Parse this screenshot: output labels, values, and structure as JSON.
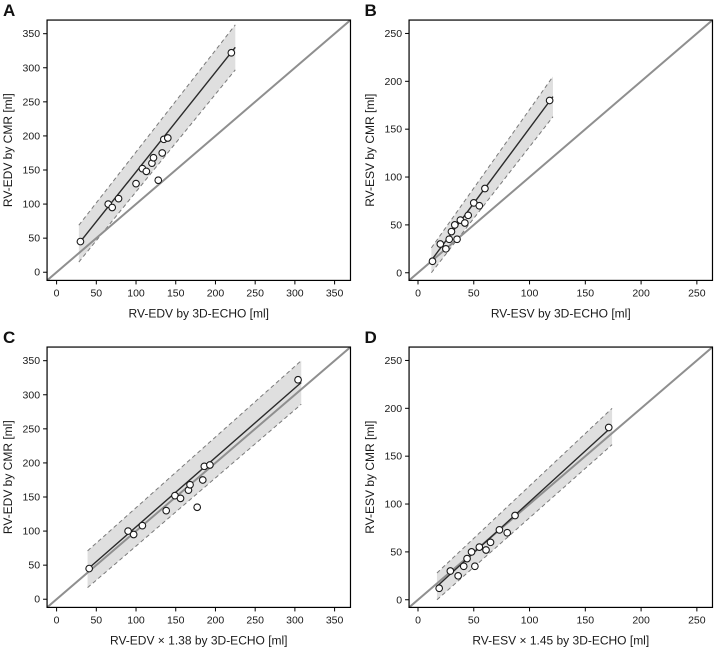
{
  "figure": {
    "background": "#ffffff",
    "point_style": {
      "fill": "#ffffff",
      "stroke": "#1a1a1a"
    },
    "colors": {
      "identity_line": "#8f8f8f",
      "regression_line": "#2b2b2b",
      "band_fill": "#dcdcdc",
      "band_edge": "#7a7a7a",
      "frame": "#000000",
      "text": "#1a1a1a"
    }
  },
  "chart_data": [
    {
      "panel": "A",
      "type": "scatter",
      "xlabel": "RV-EDV by 3D-ECHO [ml]",
      "ylabel": "RV-EDV by CMR [ml]",
      "xlim": [
        -12,
        370
      ],
      "ylim": [
        -12,
        370
      ],
      "xticks": [
        0,
        50,
        100,
        150,
        200,
        250,
        300,
        350
      ],
      "yticks": [
        0,
        50,
        100,
        150,
        200,
        250,
        300,
        350
      ],
      "grid": false,
      "legend": false,
      "identity_line": true,
      "points": [
        [
          30,
          45
        ],
        [
          65,
          100
        ],
        [
          70,
          95
        ],
        [
          78,
          108
        ],
        [
          100,
          130
        ],
        [
          108,
          152
        ],
        [
          113,
          148
        ],
        [
          120,
          160
        ],
        [
          122,
          168
        ],
        [
          128,
          135
        ],
        [
          133,
          175
        ],
        [
          135,
          195
        ],
        [
          140,
          197
        ],
        [
          220,
          322
        ]
      ],
      "regression": {
        "x0": 28,
        "y0": 42,
        "x1": 225,
        "y1": 330,
        "band_halfwidth": [
          27,
          33
        ]
      }
    },
    {
      "panel": "B",
      "type": "scatter",
      "xlabel": "RV-ESV by 3D-ECHO [ml]",
      "ylabel": "RV-ESV by CMR [ml]",
      "xlim": [
        -8,
        264
      ],
      "ylim": [
        -8,
        264
      ],
      "xticks": [
        0,
        50,
        100,
        150,
        200,
        250
      ],
      "yticks": [
        0,
        50,
        100,
        150,
        200,
        250
      ],
      "grid": false,
      "legend": false,
      "identity_line": true,
      "points": [
        [
          13,
          12
        ],
        [
          20,
          30
        ],
        [
          25,
          25
        ],
        [
          28,
          35
        ],
        [
          30,
          43
        ],
        [
          33,
          50
        ],
        [
          35,
          35
        ],
        [
          38,
          55
        ],
        [
          42,
          52
        ],
        [
          45,
          60
        ],
        [
          50,
          73
        ],
        [
          55,
          70
        ],
        [
          60,
          88
        ],
        [
          118,
          180
        ]
      ],
      "regression": {
        "x0": 12,
        "y0": 13,
        "x1": 121,
        "y1": 184,
        "band_halfwidth": [
          13,
          21
        ]
      }
    },
    {
      "panel": "C",
      "type": "scatter",
      "xlabel": "RV-EDV × 1.38 by 3D-ECHO [ml]",
      "ylabel": "RV-EDV by CMR [ml]",
      "xlim": [
        -12,
        370
      ],
      "ylim": [
        -12,
        370
      ],
      "xticks": [
        0,
        50,
        100,
        150,
        200,
        250,
        300,
        350
      ],
      "yticks": [
        0,
        50,
        100,
        150,
        200,
        250,
        300,
        350
      ],
      "grid": false,
      "legend": false,
      "identity_line": true,
      "points": [
        [
          41,
          45
        ],
        [
          90,
          100
        ],
        [
          97,
          95
        ],
        [
          108,
          108
        ],
        [
          138,
          130
        ],
        [
          149,
          152
        ],
        [
          156,
          148
        ],
        [
          166,
          160
        ],
        [
          168,
          168
        ],
        [
          177,
          135
        ],
        [
          184,
          175
        ],
        [
          186,
          195
        ],
        [
          193,
          197
        ],
        [
          304,
          322
        ]
      ],
      "regression": {
        "x0": 39,
        "y0": 44,
        "x1": 308,
        "y1": 318,
        "band_halfwidth": [
          27,
          32
        ]
      }
    },
    {
      "panel": "D",
      "type": "scatter",
      "xlabel": "RV-ESV × 1.45 by 3D-ECHO [ml]",
      "ylabel": "RV-ESV by CMR [ml]",
      "xlim": [
        -8,
        264
      ],
      "ylim": [
        -8,
        264
      ],
      "xticks": [
        0,
        50,
        100,
        150,
        200,
        250
      ],
      "yticks": [
        0,
        50,
        100,
        150,
        200,
        250
      ],
      "grid": false,
      "legend": false,
      "identity_line": true,
      "points": [
        [
          19,
          12
        ],
        [
          29,
          30
        ],
        [
          36,
          25
        ],
        [
          41,
          35
        ],
        [
          44,
          43
        ],
        [
          48,
          50
        ],
        [
          51,
          35
        ],
        [
          55,
          55
        ],
        [
          61,
          52
        ],
        [
          65,
          60
        ],
        [
          73,
          73
        ],
        [
          80,
          70
        ],
        [
          87,
          88
        ],
        [
          171,
          180
        ]
      ],
      "regression": {
        "x0": 17,
        "y0": 14,
        "x1": 174,
        "y1": 181,
        "band_halfwidth": [
          14,
          19
        ]
      }
    }
  ]
}
